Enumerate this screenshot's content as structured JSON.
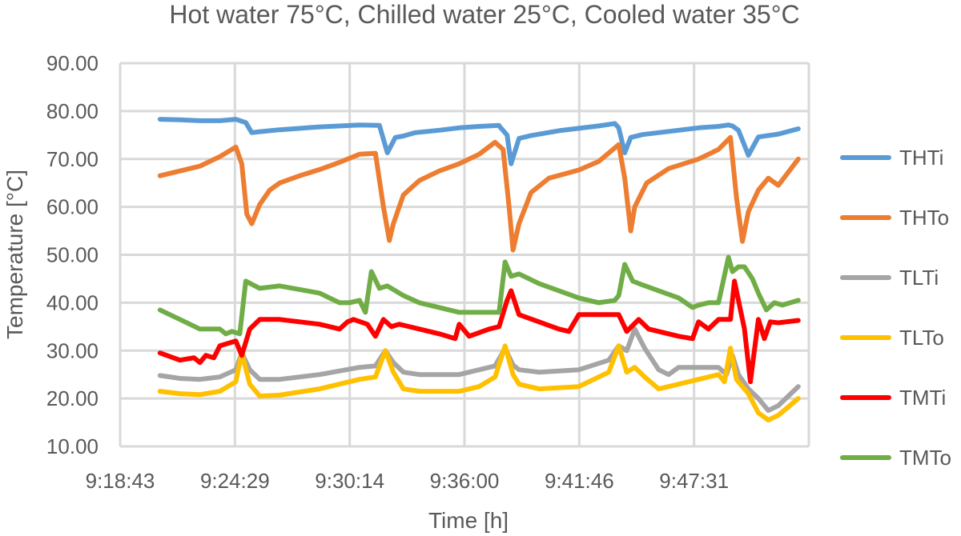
{
  "chart_data": {
    "type": "line",
    "title": "Hot water 75°C, Chilled water 25°C, Cooled water 35°C",
    "xlabel": "Time [h]",
    "ylabel": "Temperature [°C]",
    "x_ticks": [
      "9:18:43",
      "9:24:29",
      "9:30:14",
      "9:36:00",
      "9:41:46",
      "9:47:31"
    ],
    "y_ticks": [
      "10.00",
      "20.00",
      "30.00",
      "40.00",
      "50.00",
      "60.00",
      "70.00",
      "80.00",
      "90.00"
    ],
    "ylim": [
      10,
      90
    ],
    "xlim_minutes_after_9_18_43": [
      0,
      34.53
    ],
    "x_unit": "minutes after 9:18:43",
    "grid": "vertical and horizontal",
    "legend_position": "right",
    "series": [
      {
        "name": "THTi",
        "color": "#5b9bd5",
        "x": [
          2,
          3,
          4,
          5,
          5.8,
          6.3,
          6.6,
          7,
          8,
          10,
          12,
          13,
          13.4,
          13.8,
          14.2,
          14.8,
          16,
          17,
          18,
          19,
          19,
          19.4,
          19.6,
          20,
          20.6,
          22,
          24,
          24.8,
          25,
          25.3,
          25.6,
          26.2,
          28,
          29,
          30,
          30.5,
          30.7,
          31,
          31.5,
          32,
          33,
          34
        ],
        "y": [
          78.3,
          78.2,
          78,
          78,
          78.3,
          77.6,
          75.5,
          75.7,
          76.1,
          76.7,
          77.1,
          77,
          71.3,
          74.5,
          74.8,
          75.5,
          76,
          76.5,
          76.8,
          77,
          76.9,
          75,
          69,
          74.3,
          74.9,
          75.9,
          76.9,
          77.4,
          76.5,
          71.3,
          74.5,
          75.1,
          76,
          76.5,
          76.8,
          77.1,
          76.9,
          76,
          70.8,
          74.6,
          75.2,
          76.3
        ]
      },
      {
        "name": "THTo",
        "color": "#ed7d31",
        "x": [
          2,
          3,
          4,
          5,
          5.8,
          6.1,
          6.35,
          6.6,
          7,
          7.5,
          8,
          9,
          10,
          11,
          12,
          12.8,
          13.2,
          13.5,
          13.7,
          14.2,
          15,
          16,
          17,
          18,
          18.8,
          19.2,
          19.5,
          19.7,
          20,
          20.6,
          21.5,
          23,
          24,
          25,
          25.3,
          25.6,
          25.8,
          26.4,
          27.5,
          29,
          30,
          30.6,
          30.9,
          31.2,
          31.5,
          32,
          32.5,
          33,
          34
        ],
        "y": [
          66.5,
          67.5,
          68.5,
          70.5,
          72.5,
          69,
          58.5,
          56.5,
          60.5,
          63.5,
          65,
          66.5,
          67.8,
          69.3,
          71,
          71.2,
          60,
          53,
          56.5,
          62.5,
          65.5,
          67.5,
          69,
          71,
          73.5,
          72,
          60,
          51,
          56.5,
          63,
          66,
          67.7,
          69.5,
          73,
          66,
          55,
          60,
          65,
          68,
          70,
          72,
          74.5,
          62,
          52.8,
          59,
          63.5,
          66,
          64.5,
          70
        ]
      },
      {
        "name": "TLTi",
        "color": "#a5a5a5",
        "x": [
          2,
          3,
          4,
          5,
          5.8,
          6.1,
          6.5,
          7,
          8,
          10,
          12,
          12.8,
          13.3,
          13.7,
          14.2,
          15,
          17,
          18,
          18.8,
          19.3,
          19.7,
          20,
          21,
          23,
          24.5,
          25,
          25.4,
          25.8,
          26.3,
          27,
          27.5,
          28,
          29,
          30,
          30.4,
          30.7,
          31,
          31.5,
          32,
          32.5,
          33,
          34
        ],
        "y": [
          24.8,
          24.2,
          24,
          24.5,
          26,
          29.5,
          26,
          24,
          24,
          25,
          26.5,
          26.8,
          30,
          27.5,
          25.5,
          25,
          25,
          26,
          26.8,
          30.5,
          27,
          26,
          25.5,
          26,
          28,
          31,
          30,
          34.5,
          30.5,
          26,
          25,
          26.5,
          26.5,
          26.5,
          25,
          29,
          25,
          22,
          20,
          17.5,
          18.5,
          22.5
        ]
      },
      {
        "name": "TLTo",
        "color": "#ffc000",
        "x": [
          2,
          3,
          4,
          5,
          5.8,
          6.1,
          6.5,
          7,
          8,
          10,
          12,
          12.8,
          13.3,
          13.7,
          14.2,
          15,
          17,
          18,
          18.8,
          19.3,
          19.7,
          20,
          21,
          23,
          24.5,
          25,
          25.4,
          25.8,
          26.3,
          27,
          27.5,
          28,
          29,
          30,
          30.3,
          30.6,
          30.9,
          31.5,
          32,
          32.5,
          33,
          34
        ],
        "y": [
          21.5,
          21,
          20.8,
          21.5,
          23.5,
          29.5,
          23,
          20.5,
          20.7,
          22,
          24,
          24.5,
          30,
          25.5,
          22,
          21.5,
          21.5,
          22.5,
          24.5,
          31,
          25,
          23,
          22,
          22.5,
          25.5,
          31,
          25.5,
          26.5,
          24.5,
          22,
          22.5,
          23,
          24,
          25,
          23.5,
          30.5,
          24,
          21,
          17,
          15.5,
          16.5,
          20
        ]
      },
      {
        "name": "TMTi",
        "color": "#ff0000",
        "x": [
          2,
          3,
          3.7,
          4,
          4.3,
          4.7,
          5,
          5.8,
          6.1,
          6.5,
          7,
          8,
          10,
          11,
          11.4,
          11.7,
          12.4,
          12.8,
          13.2,
          13.6,
          14,
          15,
          16,
          16.8,
          17,
          17.5,
          18.5,
          19,
          19.4,
          19.6,
          20,
          21,
          22,
          22.5,
          23,
          24,
          25,
          25.4,
          26,
          26.5,
          27,
          28,
          28.7,
          29,
          29.5,
          30,
          30.6,
          30.8,
          31,
          31.3,
          31.6,
          32,
          32.3,
          32.6,
          33,
          34
        ],
        "y": [
          29.5,
          28,
          28.5,
          27.5,
          29,
          28.5,
          31,
          32,
          29,
          34.5,
          36.5,
          36.5,
          35.5,
          34.5,
          36,
          36.5,
          35.5,
          33,
          36.5,
          35,
          35.5,
          34.5,
          33.5,
          32.5,
          35.5,
          33,
          34.5,
          35,
          40.5,
          42.5,
          37.5,
          36,
          34.5,
          34,
          37.5,
          37.5,
          37.5,
          34,
          36.5,
          34.5,
          34,
          33,
          32.5,
          36,
          34.5,
          36.5,
          36.5,
          44.5,
          40.5,
          34.5,
          23.5,
          36.5,
          32.5,
          36,
          35.8,
          36.3
        ]
      },
      {
        "name": "TMTo",
        "color": "#70ad47",
        "x": [
          2,
          3,
          4,
          5,
          5.3,
          5.6,
          6,
          6.3,
          7,
          8,
          10,
          11,
          11.5,
          12,
          12.3,
          12.6,
          13,
          13.4,
          13.8,
          14.2,
          15,
          17,
          18,
          19,
          19.3,
          19.6,
          20,
          20.5,
          21,
          23,
          24,
          24.8,
          25,
          25.3,
          25.7,
          26,
          28,
          28.7,
          29,
          29.5,
          30,
          30.5,
          30.7,
          31,
          31.3,
          31.7,
          32,
          32.4,
          32.8,
          33.2,
          34
        ],
        "y": [
          38.5,
          36.5,
          34.5,
          34.5,
          33.5,
          34,
          33.5,
          44.5,
          43,
          43.5,
          42,
          40,
          40,
          40.5,
          38,
          46.5,
          43,
          43.5,
          42.5,
          41.5,
          40,
          38,
          38,
          38,
          48.5,
          45.5,
          46,
          45,
          44,
          41,
          40,
          40.5,
          41.5,
          48,
          44.5,
          44,
          41,
          39,
          39.5,
          40,
          40,
          49.5,
          46.5,
          47.5,
          47.5,
          45,
          42,
          38.5,
          40,
          39.5,
          40.5
        ]
      }
    ]
  }
}
